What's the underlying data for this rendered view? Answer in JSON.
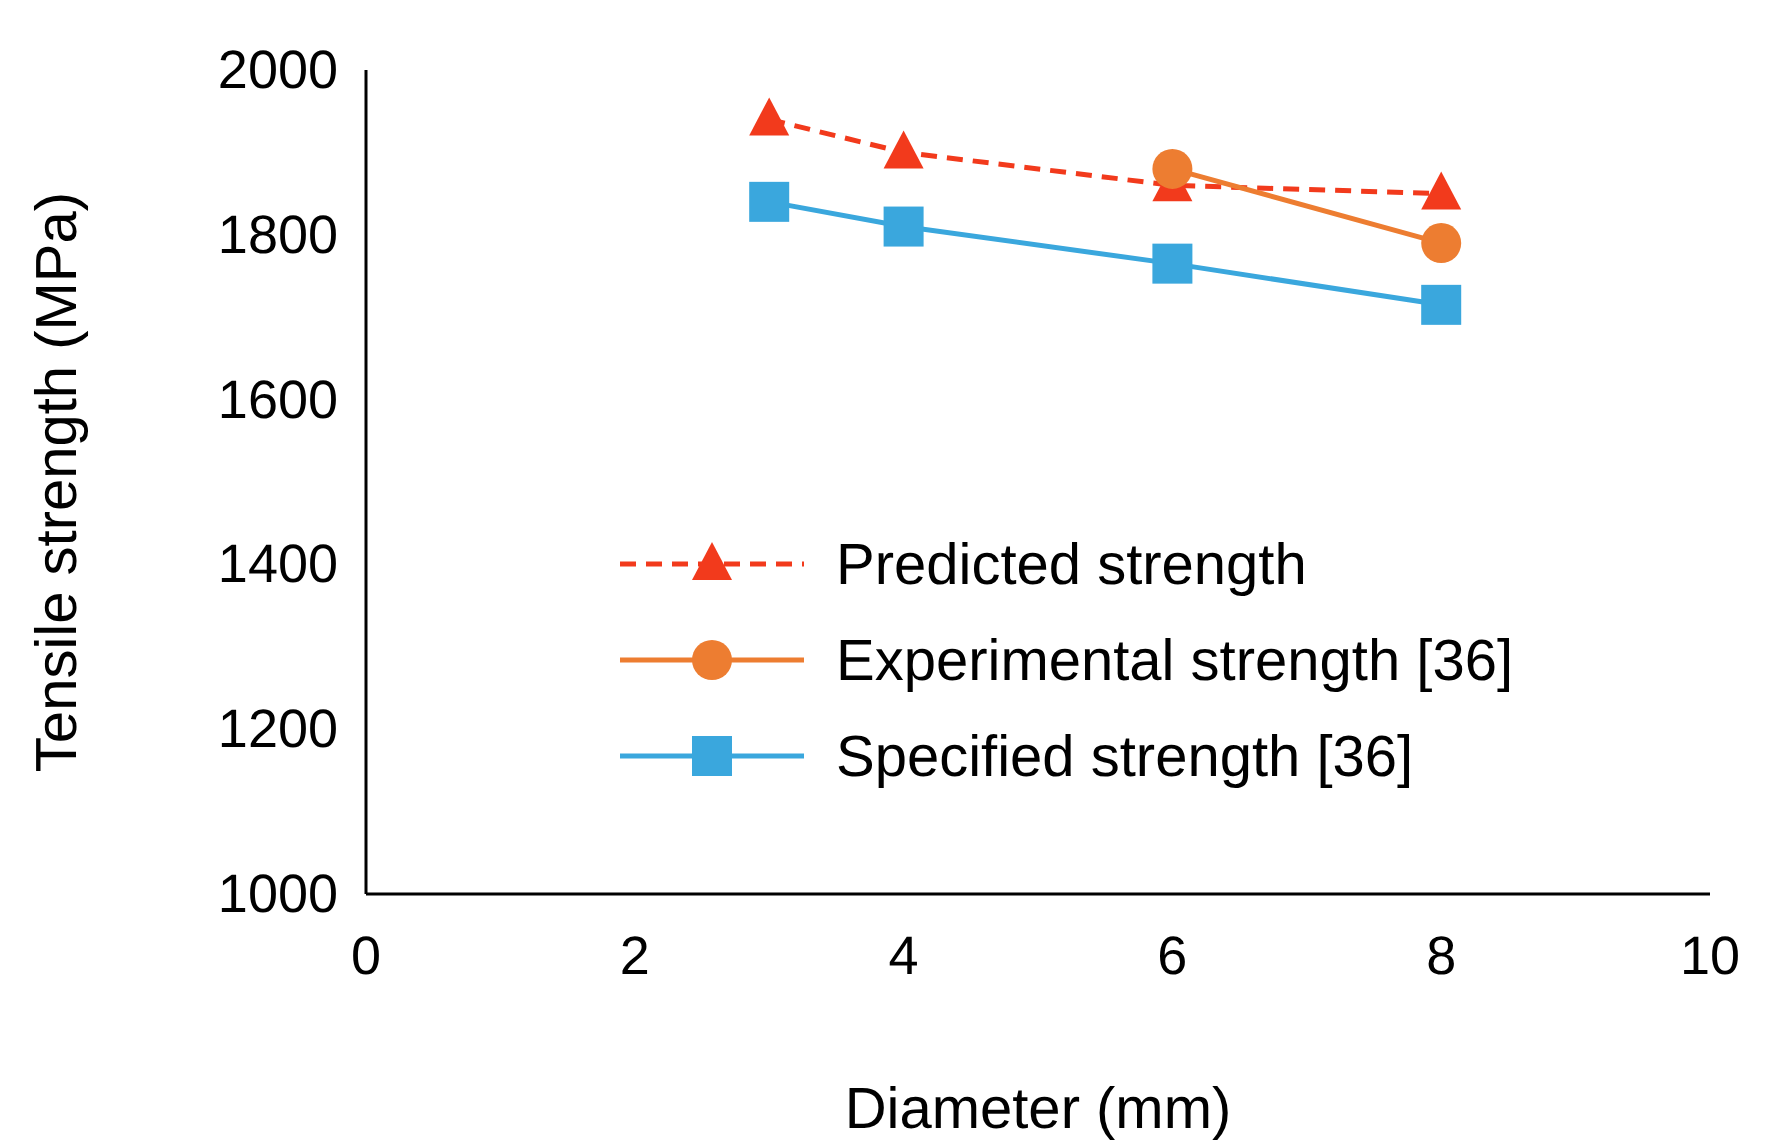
{
  "chart_data": {
    "type": "line",
    "xlabel": "Diameter (mm)",
    "ylabel": "Tensile strength (MPa)",
    "xlim": [
      0,
      10
    ],
    "xticks": [
      0,
      2,
      4,
      6,
      8,
      10
    ],
    "ylim": [
      1000,
      2000
    ],
    "yticks": [
      1000,
      1200,
      1400,
      1600,
      1800,
      2000
    ],
    "grid": false,
    "legend": "bottom right",
    "series": [
      {
        "name": "Predicted strength",
        "color": "#f23a1c",
        "x": [
          3,
          4,
          6,
          8
        ],
        "values": [
          1940,
          1900,
          1860,
          1850
        ],
        "marker": "triangle",
        "line_style": "dashed"
      },
      {
        "name": "Experimental strength [36]",
        "color": "#ed7d31",
        "x": [
          6,
          8
        ],
        "values": [
          1880,
          1790
        ],
        "marker": "circle",
        "line_style": "solid"
      },
      {
        "name": "Specified strength [36]",
        "color": "#3aa7dd",
        "x": [
          3,
          4,
          6,
          8
        ],
        "values": [
          1840,
          1810,
          1765,
          1715
        ],
        "marker": "square",
        "line_style": "solid"
      }
    ]
  }
}
